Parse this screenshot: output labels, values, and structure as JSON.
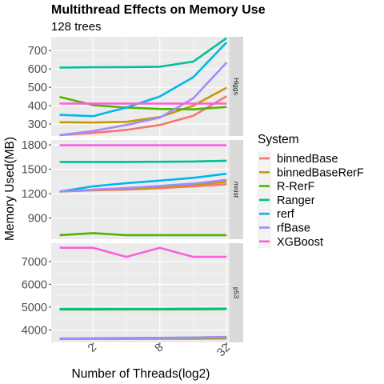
{
  "chart_data": {
    "type": "line",
    "title": "Multithread Effects on Memory Use",
    "subtitle": "128 trees",
    "xlabel": "Number of Threads(log2)",
    "ylabel": "Memory Used(MB)",
    "x": [
      1,
      2,
      4,
      8,
      16,
      32
    ],
    "x_scale": "log2",
    "xlim": [
      0.84,
      34
    ],
    "x_ticks": [
      2,
      8,
      32
    ],
    "x_tick_labels": [
      "2",
      "8",
      "32"
    ],
    "grid": true,
    "legend": {
      "title": "System",
      "position": "right",
      "entries": [
        {
          "name": "binnedBase",
          "color": "#F8766D"
        },
        {
          "name": "binnedBaseRerF",
          "color": "#C49A00"
        },
        {
          "name": "R-RerF",
          "color": "#53B400"
        },
        {
          "name": "Ranger",
          "color": "#00C094"
        },
        {
          "name": "rerf",
          "color": "#00B6EB"
        },
        {
          "name": "rfBase",
          "color": "#A58AFF"
        },
        {
          "name": "XGBoost",
          "color": "#FB61D7"
        }
      ]
    },
    "facets": [
      {
        "strip": "Higgs",
        "ylim": [
          235,
          775
        ],
        "y_ticks": [
          300,
          400,
          500,
          600,
          700
        ],
        "y_tick_labels": [
          "300",
          "400",
          "500",
          "600",
          "700"
        ],
        "series": [
          {
            "name": "binnedBase",
            "values": [
              240,
              252,
              268,
              295,
              345,
              452
            ]
          },
          {
            "name": "binnedBaseRerF",
            "values": [
              310,
              308,
              312,
              338,
              400,
              498
            ]
          },
          {
            "name": "R-RerF",
            "values": [
              448,
              403,
              390,
              382,
              380,
              393
            ]
          },
          {
            "name": "Ranger",
            "values": [
              607,
              609,
              610,
              612,
              640,
              768
            ]
          },
          {
            "name": "rerf",
            "values": [
              350,
              343,
              390,
              450,
              555,
              745
            ]
          },
          {
            "name": "rfBase",
            "values": [
              240,
              262,
              295,
              335,
              440,
              635
            ]
          },
          {
            "name": "XGBoost",
            "values": [
              412,
              412,
              412,
              412,
              412,
              412
            ]
          }
        ]
      },
      {
        "strip": "mnist",
        "ylim": [
          640,
          1860
        ],
        "y_ticks": [
          900,
          1200,
          1500,
          1800
        ],
        "y_tick_labels": [
          "900",
          "1200",
          "1500",
          "1800"
        ],
        "series": [
          {
            "name": "binnedBase",
            "values": [
              1225,
              1240,
              1250,
              1268,
              1290,
              1315
            ]
          },
          {
            "name": "binnedBaseRerF",
            "values": [
              1225,
              1248,
              1260,
              1280,
              1310,
              1345
            ]
          },
          {
            "name": "R-RerF",
            "values": [
              690,
              715,
              690,
              690,
              690,
              690
            ]
          },
          {
            "name": "Ranger",
            "values": [
              1590,
              1590,
              1590,
              1592,
              1595,
              1605
            ]
          },
          {
            "name": "rerf",
            "values": [
              1225,
              1290,
              1330,
              1360,
              1395,
              1445
            ]
          },
          {
            "name": "rfBase",
            "values": [
              1225,
              1250,
              1270,
              1295,
              1325,
              1370
            ]
          },
          {
            "name": "XGBoost",
            "values": [
              1795,
              1795,
              1795,
              1795,
              1795,
              1795
            ]
          }
        ]
      },
      {
        "strip": "p53",
        "ylim": [
          3450,
          7800
        ],
        "y_ticks": [
          4000,
          5000,
          6000,
          7000
        ],
        "y_tick_labels": [
          "4000",
          "5000",
          "6000",
          "7000"
        ],
        "series": [
          {
            "name": "binnedBase",
            "values": [
              3600,
              3605,
              3605,
              3610,
              3610,
              3620
            ]
          },
          {
            "name": "binnedBaseRerF",
            "values": [
              3605,
              3610,
              3610,
              3620,
              3625,
              3640
            ]
          },
          {
            "name": "R-RerF",
            "values": [
              4890,
              4890,
              4895,
              4895,
              4900,
              4905
            ]
          },
          {
            "name": "Ranger",
            "values": [
              4920,
              4920,
              4925,
              4925,
              4930,
              4935
            ]
          },
          {
            "name": "rerf",
            "values": [
              3620,
              3630,
              3640,
              3650,
              3665,
              3690
            ]
          },
          {
            "name": "rfBase",
            "values": [
              3610,
              3620,
              3630,
              3645,
              3660,
              3690
            ]
          },
          {
            "name": "XGBoost",
            "values": [
              7600,
              7600,
              7200,
              7600,
              7200,
              7200
            ]
          }
        ]
      }
    ]
  }
}
